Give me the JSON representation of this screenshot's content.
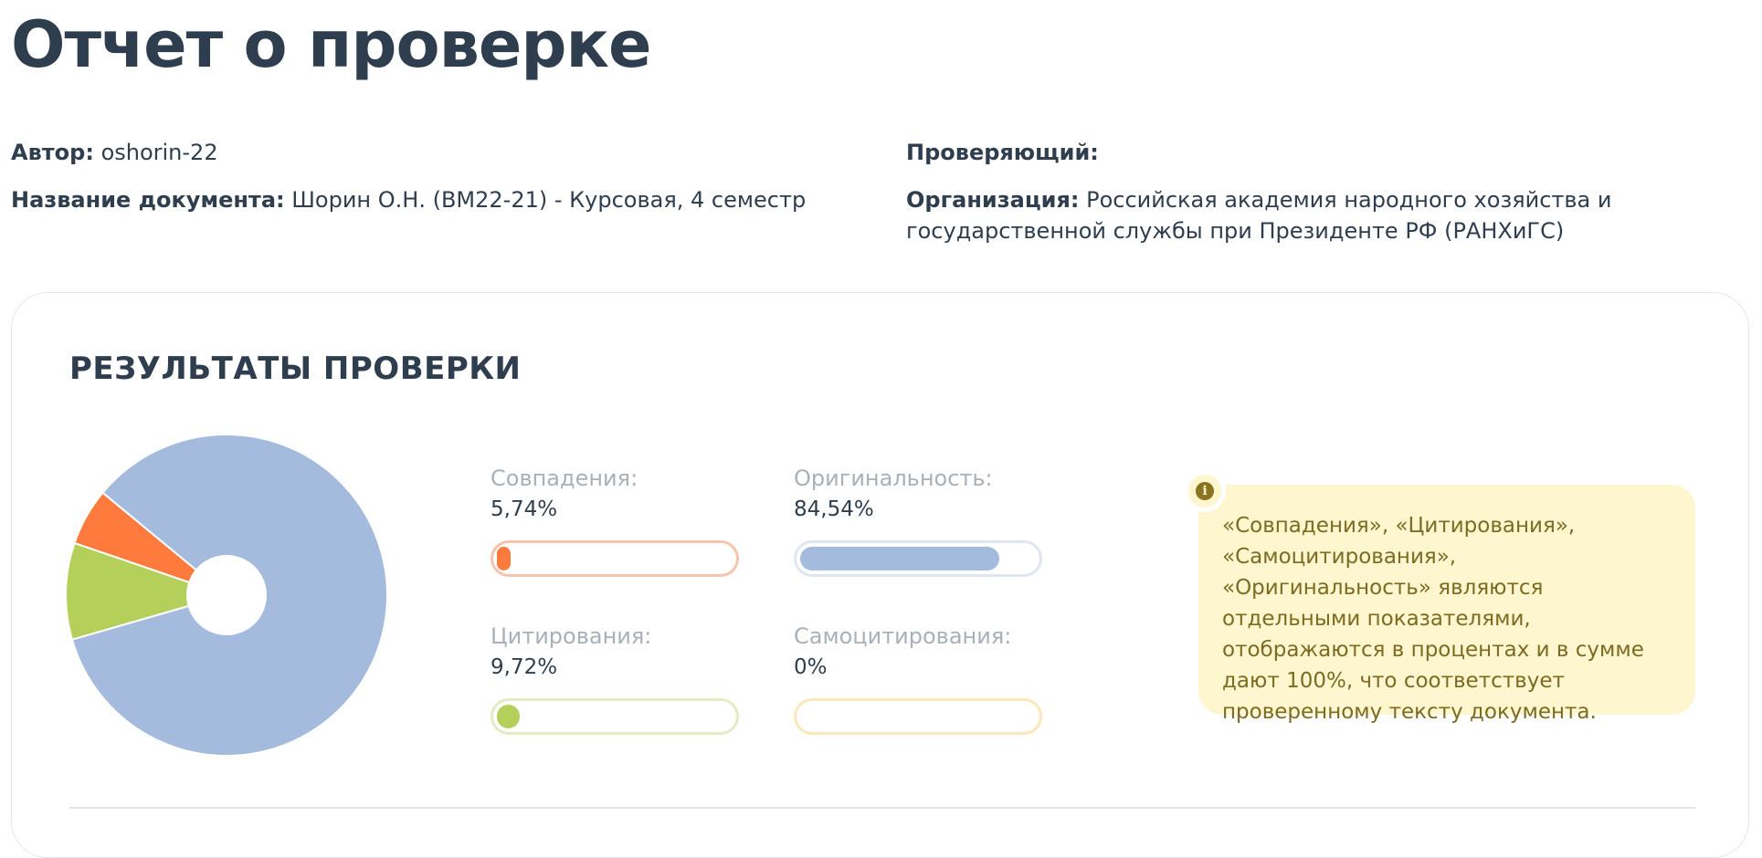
{
  "page_title": "Отчет о проверке",
  "meta": {
    "author_label": "Автор:",
    "author_value": " oshorin-22",
    "doc_label": "Название документа:",
    "doc_value": " Шорин О.Н. (ВМ22-21) - Курсовая, 4 семестр",
    "reviewer_label": "Проверяющий:",
    "org_label": "Организация:",
    "org_value_line1": " Российская академия народного хозяйства и",
    "org_value_line2": "государственной службы при Президенте РФ (РАНХиГС)"
  },
  "results": {
    "title": "РЕЗУЛЬТАТЫ ПРОВЕРКИ",
    "metrics": {
      "matches": {
        "label": "Совпадения:",
        "value": "5,74%",
        "percent": 5.74,
        "color": "#ff7a3d",
        "border": "#f7c3ad"
      },
      "originality": {
        "label": "Оригинальность:",
        "value": "84,54%",
        "percent": 84.54,
        "color": "#a4bbdd",
        "border": "#dfe6f0"
      },
      "citations": {
        "label": "Цитирования:",
        "value": "9,72%",
        "percent": 9.72,
        "color": "#b5d05a",
        "border": "#e3ecc4"
      },
      "self_citations": {
        "label": "Самоцитирования:",
        "value": "0%",
        "percent": 0,
        "color": "#f5d36b",
        "border": "#fbe8b8"
      }
    },
    "info_icon": "info-icon",
    "info_text": "«Совпадения», «Цитирования», «Самоцитирования», «Оригинальность» являются отдельными показателями, отображаются в процентах и в сумме дают 100%, что соответствует проверенному тексту документа."
  },
  "chart_data": {
    "type": "pie",
    "categories": [
      "Оригинальность",
      "Цитирования",
      "Совпадения",
      "Самоцитирования"
    ],
    "values": [
      84.54,
      9.72,
      5.74,
      0
    ],
    "colors": [
      "#a4bbdd",
      "#b5d05a",
      "#ff7a3d",
      "#f5d36b"
    ],
    "donut": true
  }
}
